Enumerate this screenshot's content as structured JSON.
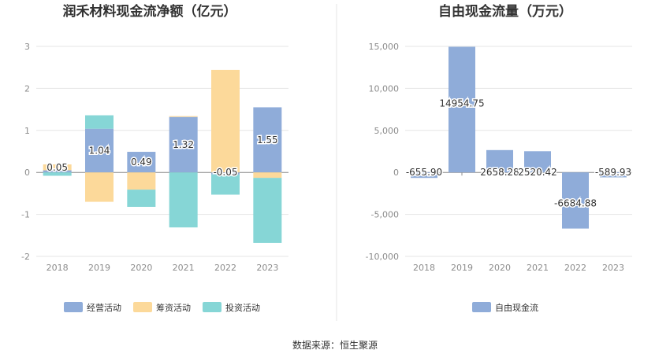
{
  "source": "数据来源：恒生聚源",
  "chart_data": [
    {
      "type": "bar",
      "stacked": true,
      "title": "润禾材料现金流净额（亿元）",
      "categories": [
        "2018",
        "2019",
        "2020",
        "2021",
        "2022",
        "2023"
      ],
      "ylim": [
        -2,
        3
      ],
      "yticks": [
        -2,
        -1,
        0,
        1,
        2,
        3
      ],
      "grid": true,
      "legend_position": "bottom",
      "series": [
        {
          "name": "经营活动",
          "color": "#8facd9",
          "values": [
            0.05,
            1.04,
            0.49,
            1.32,
            -0.05,
            1.55
          ]
        },
        {
          "name": "筹资活动",
          "color": "#fcd99a",
          "values": [
            0.14,
            -0.7,
            -0.41,
            0.02,
            2.44,
            -0.13
          ]
        },
        {
          "name": "投资活动",
          "color": "#86d6d6",
          "values": [
            -0.08,
            0.32,
            -0.41,
            -1.31,
            -0.48,
            -1.55
          ]
        }
      ],
      "data_labels": [
        "0.05",
        "1.04",
        "0.49",
        "1.32",
        "-0.05",
        "1.55"
      ]
    },
    {
      "type": "bar",
      "title": "自由现金流量（万元）",
      "categories": [
        "2018",
        "2019",
        "2020",
        "2021",
        "2022",
        "2023"
      ],
      "ylim": [
        -10000,
        15000
      ],
      "yticks": [
        -10000,
        -5000,
        0,
        5000,
        10000,
        15000
      ],
      "ytick_labels": [
        "-10,000",
        "-5,000",
        "0",
        "5,000",
        "10,000",
        "15,000"
      ],
      "grid": true,
      "legend_position": "bottom",
      "series": [
        {
          "name": "自由现金流",
          "color": "#8facd9",
          "values": [
            -655.9,
            14954.75,
            2658.28,
            2520.42,
            -6684.88,
            -589.93
          ]
        }
      ],
      "data_labels": [
        "-655.90",
        "14954.75",
        "2658.28",
        "2520.42",
        "-6684.88",
        "-589.93"
      ]
    }
  ]
}
